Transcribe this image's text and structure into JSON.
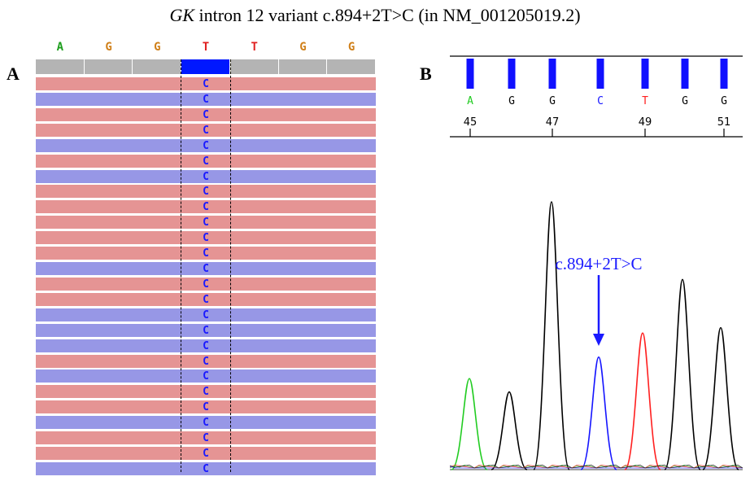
{
  "title": {
    "gene": "GK",
    "rest": " intron 12 variant c.894+2T>C (in NM_001205019.2)"
  },
  "panel_a": {
    "letter": "A",
    "reference": [
      {
        "base": "A",
        "color": "#1e9e1e"
      },
      {
        "base": "G",
        "color": "#d0801a"
      },
      {
        "base": "G",
        "color": "#d0801a"
      },
      {
        "base": "T",
        "color": "#e02020"
      },
      {
        "base": "T",
        "color": "#e02020"
      },
      {
        "base": "G",
        "color": "#d0801a"
      },
      {
        "base": "G",
        "color": "#d0801a"
      }
    ],
    "highlighted_index": 3,
    "read_base": "C",
    "read_strands": [
      "fwd",
      "rev",
      "fwd",
      "fwd",
      "rev",
      "fwd",
      "rev",
      "fwd",
      "fwd",
      "fwd",
      "fwd",
      "fwd",
      "rev",
      "fwd",
      "fwd",
      "rev",
      "rev",
      "rev",
      "fwd",
      "rev",
      "fwd",
      "fwd",
      "rev",
      "fwd",
      "fwd",
      "rev"
    ],
    "colors": {
      "forward": "#e59494",
      "reverse": "#9797e6"
    }
  },
  "panel_b": {
    "letter": "B",
    "bases": [
      {
        "base": "A",
        "color": "#22cc22"
      },
      {
        "base": "G",
        "color": "#000000"
      },
      {
        "base": "G",
        "color": "#000000"
      },
      {
        "base": "C",
        "color": "#1515ff"
      },
      {
        "base": "T",
        "color": "#ff2020"
      },
      {
        "base": "G",
        "color": "#000000"
      },
      {
        "base": "G",
        "color": "#000000"
      }
    ],
    "position_labels": [
      "45",
      "47",
      "49",
      "51"
    ],
    "annotation": "c.894+2T>C",
    "annotation_color": "#1a1aff",
    "trace_colors": {
      "A": "#22cc22",
      "C": "#1515ff",
      "G": "#000000",
      "T": "#ff2020"
    },
    "peaks": [
      {
        "base": "A",
        "height": 0.34
      },
      {
        "base": "G",
        "height": 0.29
      },
      {
        "base": "G",
        "height": 1.0
      },
      {
        "base": "C",
        "height": 0.42
      },
      {
        "base": "T",
        "height": 0.51
      },
      {
        "base": "G",
        "height": 0.71
      },
      {
        "base": "G",
        "height": 0.53
      }
    ]
  }
}
